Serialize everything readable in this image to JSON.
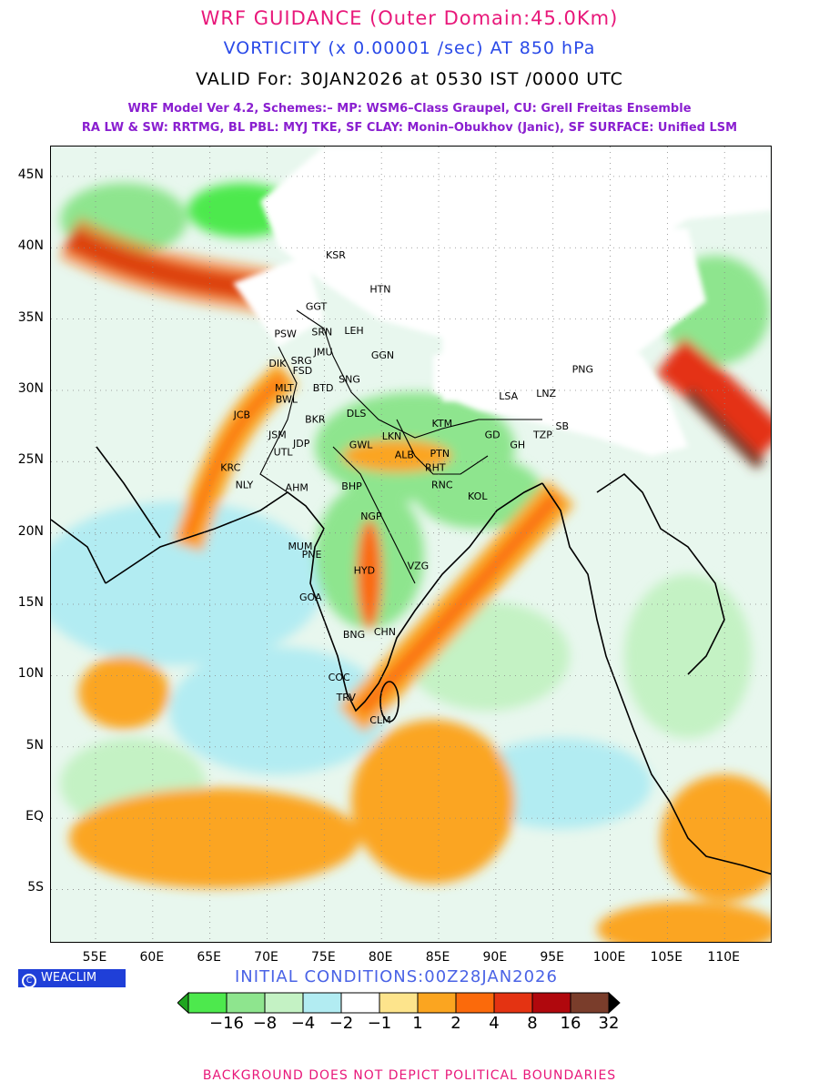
{
  "titles": {
    "line1": "WRF GUIDANCE (Outer Domain:45.0Km)",
    "line2": "VORTICITY (x 0.00001 /sec) AT 850 hPa",
    "line3": "VALID For: 30JAN2026 at 0530 IST /0000 UTC",
    "line4": "WRF Model Ver 4.2, Schemes:– MP: WSM6–Class Graupel, CU: Grell Freitas Ensemble",
    "line5": "RA LW & SW: RRTMG, BL PBL: MYJ TKE, SF CLAY: Monin–Obukhov (Janic), SF SURFACE: Unified LSM"
  },
  "colors": {
    "title1": "#e8187a",
    "title2": "#2a4ae8",
    "model_lines": "#8a1fd0"
  },
  "axes": {
    "y_labels": [
      "45N",
      "40N",
      "35N",
      "30N",
      "25N",
      "20N",
      "15N",
      "10N",
      "5N",
      "EQ",
      "5S"
    ],
    "x_labels": [
      "55E",
      "60E",
      "65E",
      "70E",
      "75E",
      "80E",
      "85E",
      "90E",
      "95E",
      "100E",
      "105E",
      "110E"
    ],
    "lon_range": [
      51.1,
      114.2
    ],
    "lat_range": [
      -8.8,
      47.1
    ]
  },
  "cities": [
    {
      "name": "KSR",
      "lon": 76.0,
      "lat": 39.5
    },
    {
      "name": "HTN",
      "lon": 79.9,
      "lat": 37.1
    },
    {
      "name": "GGT",
      "lon": 74.3,
      "lat": 35.9
    },
    {
      "name": "PSW",
      "lon": 71.6,
      "lat": 34.0
    },
    {
      "name": "SRN",
      "lon": 74.8,
      "lat": 34.1
    },
    {
      "name": "LEH",
      "lon": 77.6,
      "lat": 34.2
    },
    {
      "name": "JMU",
      "lon": 74.9,
      "lat": 32.7
    },
    {
      "name": "GGN",
      "lon": 80.1,
      "lat": 32.5
    },
    {
      "name": "DIK",
      "lon": 70.9,
      "lat": 31.9
    },
    {
      "name": "SRG",
      "lon": 73.0,
      "lat": 32.1
    },
    {
      "name": "FSD",
      "lon": 73.1,
      "lat": 31.4
    },
    {
      "name": "MLT",
      "lon": 71.5,
      "lat": 30.2
    },
    {
      "name": "BTD",
      "lon": 74.9,
      "lat": 30.2
    },
    {
      "name": "SNG",
      "lon": 77.2,
      "lat": 30.8
    },
    {
      "name": "BWL",
      "lon": 71.7,
      "lat": 29.4
    },
    {
      "name": "LSA",
      "lon": 91.1,
      "lat": 29.6
    },
    {
      "name": "LNZ",
      "lon": 94.4,
      "lat": 29.8
    },
    {
      "name": "PNG",
      "lon": 97.6,
      "lat": 31.5
    },
    {
      "name": "DLS",
      "lon": 77.8,
      "lat": 28.4
    },
    {
      "name": "JCB",
      "lon": 67.8,
      "lat": 28.3
    },
    {
      "name": "BKR",
      "lon": 74.2,
      "lat": 28.0
    },
    {
      "name": "JSM",
      "lon": 70.9,
      "lat": 26.9
    },
    {
      "name": "LKN",
      "lon": 80.9,
      "lat": 26.8
    },
    {
      "name": "KTM",
      "lon": 85.3,
      "lat": 27.7
    },
    {
      "name": "JDP",
      "lon": 73.0,
      "lat": 26.3
    },
    {
      "name": "GWL",
      "lon": 78.2,
      "lat": 26.2
    },
    {
      "name": "UTL",
      "lon": 71.4,
      "lat": 25.7
    },
    {
      "name": "GD",
      "lon": 89.7,
      "lat": 26.9
    },
    {
      "name": "TZP",
      "lon": 94.1,
      "lat": 26.9
    },
    {
      "name": "SB",
      "lon": 95.8,
      "lat": 27.5
    },
    {
      "name": "GH",
      "lon": 91.9,
      "lat": 26.2
    },
    {
      "name": "ALB",
      "lon": 82.0,
      "lat": 25.5
    },
    {
      "name": "PTN",
      "lon": 85.1,
      "lat": 25.6
    },
    {
      "name": "RHT",
      "lon": 84.7,
      "lat": 24.6
    },
    {
      "name": "KRC",
      "lon": 66.8,
      "lat": 24.6
    },
    {
      "name": "NLY",
      "lon": 68.0,
      "lat": 23.4
    },
    {
      "name": "AHM",
      "lon": 72.6,
      "lat": 23.2
    },
    {
      "name": "BHP",
      "lon": 77.4,
      "lat": 23.3
    },
    {
      "name": "RNC",
      "lon": 85.3,
      "lat": 23.4
    },
    {
      "name": "KOL",
      "lon": 88.4,
      "lat": 22.6
    },
    {
      "name": "NGP",
      "lon": 79.1,
      "lat": 21.2
    },
    {
      "name": "MUM",
      "lon": 72.9,
      "lat": 19.1
    },
    {
      "name": "PNE",
      "lon": 73.9,
      "lat": 18.5
    },
    {
      "name": "HYD",
      "lon": 78.5,
      "lat": 17.4
    },
    {
      "name": "VZG",
      "lon": 83.2,
      "lat": 17.7
    },
    {
      "name": "GOA",
      "lon": 73.8,
      "lat": 15.5
    },
    {
      "name": "BNG",
      "lon": 77.6,
      "lat": 12.9
    },
    {
      "name": "CHN",
      "lon": 80.3,
      "lat": 13.1
    },
    {
      "name": "COC",
      "lon": 76.3,
      "lat": 9.9
    },
    {
      "name": "TRV",
      "lon": 76.9,
      "lat": 8.5
    },
    {
      "name": "CLM",
      "lon": 79.9,
      "lat": 6.9
    }
  ],
  "colorbar": {
    "labels": [
      "−16",
      "−8",
      "−4",
      "−2",
      "−1",
      "1",
      "2",
      "4",
      "8",
      "16",
      "32"
    ],
    "colors": [
      "#1fa51f",
      "#4de94d",
      "#8ee58e",
      "#c4f2c4",
      "#b2ecf2",
      "#ffffff",
      "#fde48c",
      "#fba520",
      "#fb6a0b",
      "#e43312",
      "#b0080d",
      "#7a3d2b",
      "#000000"
    ]
  },
  "footer": {
    "badge": "WEACLIM",
    "initial_conditions": "INITIAL CONDITIONS:00Z28JAN2026",
    "note": "BACKGROUND DOES NOT DEPICT POLITICAL BOUNDARIES"
  }
}
